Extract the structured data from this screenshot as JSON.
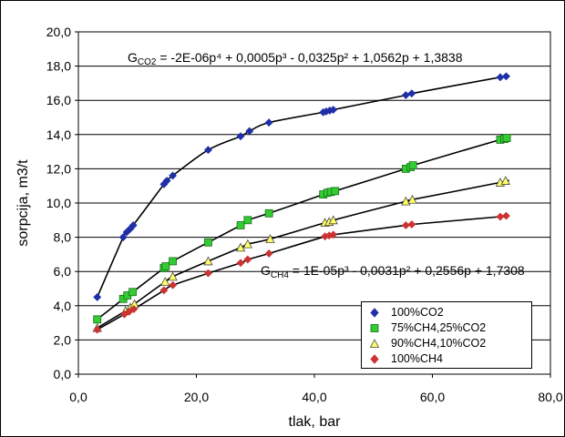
{
  "chart_data": {
    "type": "scatter",
    "title": "",
    "xlabel": "tlak, bar",
    "ylabel": "sorpcija, m3/t",
    "xlim": [
      0,
      80
    ],
    "ylim": [
      0,
      20
    ],
    "x_ticks": [
      "0,0",
      "20,0",
      "40,0",
      "60,0",
      "80,0"
    ],
    "y_ticks": [
      "0,0",
      "2,0",
      "4,0",
      "6,0",
      "8,0",
      "10,0",
      "12,0",
      "14,0",
      "16,0",
      "18,0",
      "20,0"
    ],
    "grid": "horizontal",
    "legend_position": "bottom-right inside",
    "trendline": "polynomial",
    "equations": {
      "co2": {
        "prefix": "G",
        "sub": "CO2",
        "text": " = -2E-06p⁴ + 0,0005p³ - 0,0325p² + 1,0562p + 1,3838"
      },
      "ch4": {
        "prefix": "G",
        "sub": "CH4",
        "text": " = 1E-05p³ - 0,0031p² + 0,2556p + 1,7308"
      }
    },
    "series": [
      {
        "name": "100%CO2",
        "marker": "diamond",
        "color": "#1f2fa8",
        "x": [
          3.2,
          7.6,
          8.2,
          8.8,
          9.3,
          14.5,
          15.0,
          16.0,
          22.0,
          27.5,
          29.0,
          32.3,
          41.5,
          42.0,
          42.6,
          43.2,
          55.5,
          56.5,
          71.5,
          72.5
        ],
        "y": [
          4.5,
          8.0,
          8.3,
          8.5,
          8.7,
          11.1,
          11.3,
          11.6,
          13.1,
          13.9,
          14.2,
          14.7,
          15.3,
          15.35,
          15.4,
          15.45,
          16.3,
          16.4,
          17.35,
          17.4
        ]
      },
      {
        "name": "75%CH4,25%CO2",
        "marker": "square",
        "color": "#33cc33",
        "x": [
          3.2,
          7.6,
          8.3,
          9.2,
          14.5,
          14.8,
          16.0,
          22.0,
          27.5,
          28.7,
          32.3,
          41.5,
          42.2,
          42.8,
          43.5,
          55.5,
          56.3,
          56.7,
          71.5,
          72.2,
          72.6
        ],
        "y": [
          3.2,
          4.4,
          4.6,
          4.8,
          6.2,
          6.3,
          6.6,
          7.7,
          8.7,
          9.0,
          9.4,
          10.5,
          10.6,
          10.65,
          10.7,
          12.0,
          12.1,
          12.2,
          13.7,
          13.75,
          13.8
        ]
      },
      {
        "name": "90%CH4,10%CO2",
        "marker": "triangle",
        "color": "#ffff66",
        "x": [
          3.2,
          8.0,
          8.8,
          9.5,
          14.7,
          16.0,
          22.0,
          27.5,
          28.7,
          32.5,
          41.8,
          42.5,
          43.2,
          55.5,
          56.6,
          71.5,
          72.4
        ],
        "y": [
          2.7,
          3.7,
          3.9,
          4.1,
          5.4,
          5.7,
          6.6,
          7.4,
          7.6,
          7.9,
          8.85,
          8.9,
          9.0,
          10.1,
          10.2,
          11.2,
          11.3
        ]
      },
      {
        "name": "100%CH4",
        "marker": "diamond",
        "color": "#cc3333",
        "x": [
          3.2,
          7.8,
          8.6,
          9.4,
          14.5,
          16.0,
          22.0,
          27.5,
          28.7,
          32.3,
          41.8,
          42.5,
          43.2,
          55.5,
          56.5,
          71.5,
          72.5
        ],
        "y": [
          2.6,
          3.5,
          3.65,
          3.8,
          4.9,
          5.2,
          5.9,
          6.5,
          6.7,
          7.05,
          8.05,
          8.1,
          8.15,
          8.7,
          8.75,
          9.2,
          9.25
        ]
      }
    ]
  }
}
